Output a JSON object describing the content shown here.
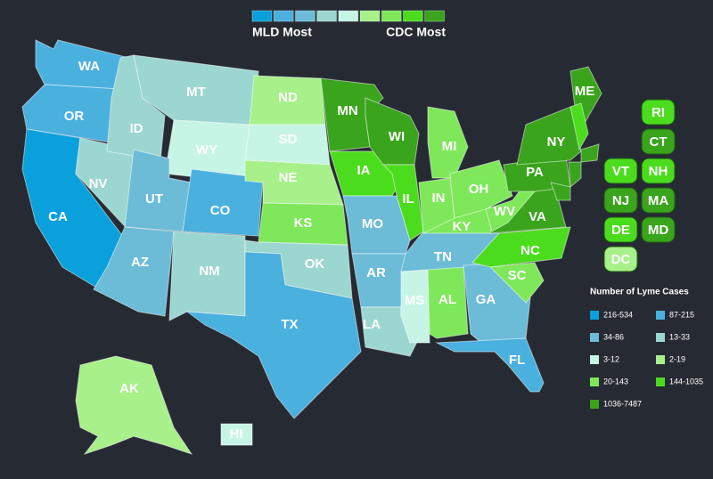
{
  "header": {
    "left_label": "MLD Most",
    "right_label": "CDC Most"
  },
  "states": [
    {
      "label": "WA",
      "color": "#4ab0de"
    },
    {
      "label": "OR",
      "color": "#4ab0de"
    },
    {
      "label": "CA",
      "color": "#0aa0dc"
    },
    {
      "label": "NV",
      "color": "#9cd6d0"
    },
    {
      "label": "ID",
      "color": "#9cd6d0"
    },
    {
      "label": "MT",
      "color": "#9cd6d0"
    },
    {
      "label": "WY",
      "color": "#c6f5e6"
    },
    {
      "label": "UT",
      "color": "#6cbcd8"
    },
    {
      "label": "AZ",
      "color": "#6cbcd8"
    },
    {
      "label": "CO",
      "color": "#4ab0de"
    },
    {
      "label": "NM",
      "color": "#9cd6d0"
    },
    {
      "label": "ND",
      "color": "#a8f08a"
    },
    {
      "label": "SD",
      "color": "#c6f5e6"
    },
    {
      "label": "NE",
      "color": "#a8f08a"
    },
    {
      "label": "KS",
      "color": "#7ee85a"
    },
    {
      "label": "OK",
      "color": "#9cd6d0"
    },
    {
      "label": "TX",
      "color": "#4ab0de"
    },
    {
      "label": "MN",
      "color": "#3aa41c"
    },
    {
      "label": "IA",
      "color": "#4cdc1e"
    },
    {
      "label": "MO",
      "color": "#6cbcd8"
    },
    {
      "label": "AR",
      "color": "#6cbcd8"
    },
    {
      "label": "LA",
      "color": "#9cd6d0"
    },
    {
      "label": "WI",
      "color": "#3aa41c"
    },
    {
      "label": "IL",
      "color": "#4cdc1e"
    },
    {
      "label": "MI",
      "color": "#7ee85a"
    },
    {
      "label": "MS",
      "color": "#c6f5e6"
    },
    {
      "label": "AL",
      "color": "#7ee85a"
    },
    {
      "label": "TN",
      "color": "#6cbcd8"
    },
    {
      "label": "KY",
      "color": "#7ee85a"
    },
    {
      "label": "IN",
      "color": "#7ee85a"
    },
    {
      "label": "OH",
      "color": "#7ee85a"
    },
    {
      "label": "GA",
      "color": "#6cbcd8"
    },
    {
      "label": "FL",
      "color": "#4ab0de"
    },
    {
      "label": "SC",
      "color": "#7ee85a"
    },
    {
      "label": "NC",
      "color": "#4cdc1e"
    },
    {
      "label": "VA",
      "color": "#3aa41c"
    },
    {
      "label": "WV",
      "color": "#7ee85a"
    },
    {
      "label": "PA",
      "color": "#3aa41c"
    },
    {
      "label": "NY",
      "color": "#3aa41c"
    },
    {
      "label": "ME",
      "color": "#3aa41c"
    },
    {
      "label": "AK",
      "color": "#a8f08a"
    },
    {
      "label": "HI",
      "color": "#c6f5e6"
    }
  ],
  "small_states": [
    {
      "label": "RI",
      "color": "#4cdc1e"
    },
    {
      "label": "CT",
      "color": "#3aa41c"
    },
    {
      "label": "VT",
      "color": "#4cdc1e"
    },
    {
      "label": "NH",
      "color": "#4cdc1e"
    },
    {
      "label": "NJ",
      "color": "#3aa41c"
    },
    {
      "label": "MA",
      "color": "#3aa41c"
    },
    {
      "label": "DE",
      "color": "#4cdc1e"
    },
    {
      "label": "MD",
      "color": "#3aa41c"
    },
    {
      "label": "DC",
      "color": "#a8f08a"
    }
  ],
  "legend": {
    "title": "Number of Lyme Cases",
    "items": [
      {
        "label": "216-534",
        "color": "#0aa0dc"
      },
      {
        "label": "87-215",
        "color": "#4ab0de"
      },
      {
        "label": "34-86",
        "color": "#6cbcd8"
      },
      {
        "label": "13-33",
        "color": "#9cd6d0"
      },
      {
        "label": "3-12",
        "color": "#c6f5e6"
      },
      {
        "label": "2-19",
        "color": "#a8f08a"
      },
      {
        "label": "20-143",
        "color": "#7ee85a"
      },
      {
        "label": "144-1035",
        "color": "#4cdc1e"
      },
      {
        "label": "1036-7487",
        "color": "#3aa41c"
      }
    ]
  }
}
